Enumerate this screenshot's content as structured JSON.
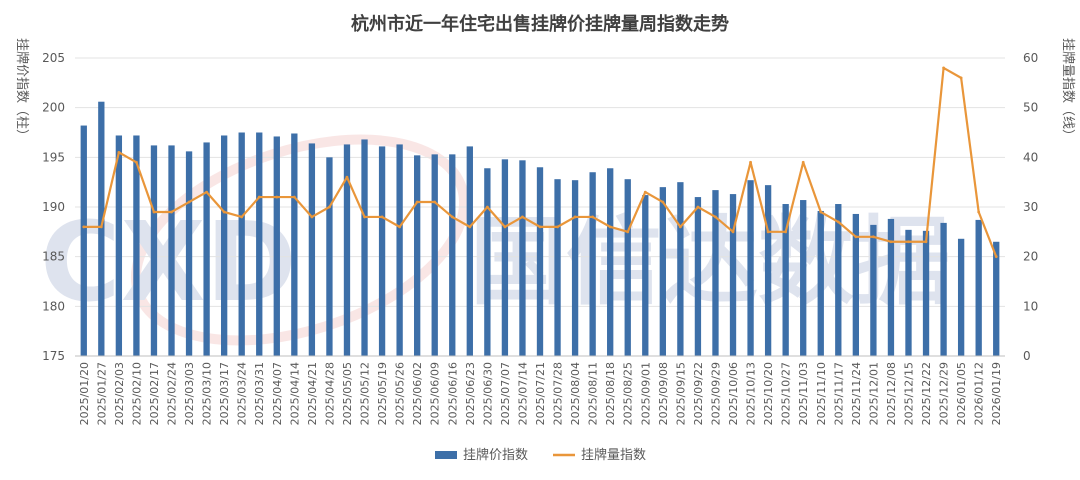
{
  "chart_data": {
    "type": "bar+line",
    "title": "杭州市近一年住宅出售挂牌价挂牌量周指数走势",
    "y_left_label": "挂牌价指数（柱）",
    "y_right_label": "挂牌量指数（线）",
    "y_left_range": [
      175,
      205
    ],
    "y_left_ticks": [
      "175",
      "180",
      "185",
      "190",
      "195",
      "200",
      "205"
    ],
    "y_right_range": [
      0,
      60
    ],
    "y_right_ticks": [
      "0",
      "10",
      "20",
      "30",
      "40",
      "50",
      "60"
    ],
    "grid": true,
    "legend_position": "bottom",
    "colors": {
      "bar": "#3d6fa8",
      "line": "#e9963a",
      "grid": "#e3e3e3",
      "text": "#595959"
    },
    "watermark": "CXD 国信达数据",
    "categories": [
      "2025/01/20",
      "2025/01/27",
      "2025/02/03",
      "2025/02/10",
      "2025/02/17",
      "2025/02/24",
      "2025/03/03",
      "2025/03/10",
      "2025/03/17",
      "2025/03/24",
      "2025/03/31",
      "2025/04/07",
      "2025/04/14",
      "2025/04/21",
      "2025/04/28",
      "2025/05/05",
      "2025/05/12",
      "2025/05/19",
      "2025/05/26",
      "2025/06/02",
      "2025/06/09",
      "2025/06/16",
      "2025/06/23",
      "2025/06/30",
      "2025/07/07",
      "2025/07/14",
      "2025/07/21",
      "2025/07/28",
      "2025/08/04",
      "2025/08/11",
      "2025/08/18",
      "2025/08/25",
      "2025/09/01",
      "2025/09/08",
      "2025/09/15",
      "2025/09/22",
      "2025/09/29",
      "2025/10/06",
      "2025/10/13",
      "2025/10/20",
      "2025/10/27",
      "2025/11/03",
      "2025/11/10",
      "2025/11/17",
      "2025/11/24",
      "2025/12/01",
      "2025/12/08",
      "2025/12/15",
      "2025/12/22",
      "2025/12/29",
      "2026/01/05",
      "2026/01/12",
      "2026/01/19"
    ],
    "series": [
      {
        "name": "挂牌价指数",
        "axis": "left",
        "kind": "bar",
        "values": [
          198.2,
          200.6,
          197.2,
          197.2,
          196.2,
          196.2,
          195.6,
          196.5,
          197.2,
          197.5,
          197.5,
          197.1,
          197.4,
          196.4,
          195.0,
          196.3,
          196.8,
          196.1,
          196.3,
          195.2,
          195.3,
          195.3,
          196.1,
          193.9,
          194.8,
          194.7,
          194.0,
          192.8,
          192.7,
          193.5,
          193.9,
          192.8,
          191.2,
          192.0,
          192.5,
          191.0,
          191.7,
          191.3,
          192.7,
          192.2,
          190.3,
          190.7,
          189.6,
          190.3,
          189.3,
          188.2,
          188.8,
          187.7,
          187.6,
          188.4,
          186.8,
          188.7,
          186.5
        ]
      },
      {
        "name": "挂牌量指数",
        "axis": "right",
        "kind": "line",
        "values": [
          26,
          26,
          41,
          39,
          29,
          29,
          31,
          33,
          29,
          28,
          32,
          32,
          32,
          28,
          30,
          36,
          28,
          28,
          26,
          31,
          31,
          28,
          26,
          30,
          26,
          28,
          26,
          26,
          28,
          28,
          26,
          25,
          33,
          31,
          26,
          30,
          28,
          25,
          39,
          25,
          25,
          39,
          29,
          27,
          24,
          24,
          23,
          23,
          23,
          58,
          56,
          29,
          20
        ]
      }
    ]
  }
}
